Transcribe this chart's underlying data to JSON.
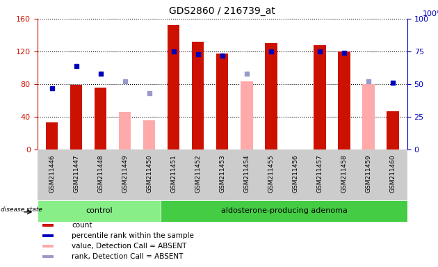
{
  "title": "GDS2860 / 216739_at",
  "samples": [
    "GSM211446",
    "GSM211447",
    "GSM211448",
    "GSM211449",
    "GSM211450",
    "GSM211451",
    "GSM211452",
    "GSM211453",
    "GSM211454",
    "GSM211455",
    "GSM211456",
    "GSM211457",
    "GSM211458",
    "GSM211459",
    "GSM211460"
  ],
  "count_values": [
    33,
    79,
    76,
    null,
    null,
    152,
    132,
    117,
    null,
    130,
    null,
    128,
    120,
    null,
    47
  ],
  "absent_value_bars": [
    null,
    null,
    null,
    46,
    36,
    null,
    null,
    null,
    83,
    null,
    null,
    null,
    null,
    80,
    null
  ],
  "percentile_rank_pct": [
    47,
    64,
    58,
    null,
    null,
    75,
    73,
    72,
    null,
    75,
    null,
    75,
    74,
    null,
    51
  ],
  "absent_rank_pct": [
    null,
    null,
    null,
    52,
    43,
    null,
    null,
    null,
    58,
    null,
    null,
    null,
    null,
    52,
    null
  ],
  "is_absent": [
    false,
    false,
    false,
    true,
    true,
    false,
    false,
    false,
    true,
    false,
    false,
    false,
    false,
    true,
    false
  ],
  "group": [
    "control",
    "control",
    "control",
    "control",
    "control",
    "adenoma",
    "adenoma",
    "adenoma",
    "adenoma",
    "adenoma",
    "adenoma",
    "adenoma",
    "adenoma",
    "adenoma",
    "adenoma"
  ],
  "ylim_left": [
    0,
    160
  ],
  "ylim_right": [
    0,
    100
  ],
  "yticks_left": [
    0,
    40,
    80,
    120,
    160
  ],
  "yticks_right": [
    0,
    25,
    50,
    75,
    100
  ],
  "bar_color_present": "#cc1100",
  "bar_color_absent": "#ffaaaa",
  "dot_color_present": "#0000bb",
  "dot_color_absent": "#9999cc",
  "group_color_control": "#88ee88",
  "group_color_adenoma": "#44cc44",
  "legend_items": [
    {
      "label": "count",
      "color": "#cc1100"
    },
    {
      "label": "percentile rank within the sample",
      "color": "#0000bb"
    },
    {
      "label": "value, Detection Call = ABSENT",
      "color": "#ffaaaa"
    },
    {
      "label": "rank, Detection Call = ABSENT",
      "color": "#9999cc"
    }
  ]
}
